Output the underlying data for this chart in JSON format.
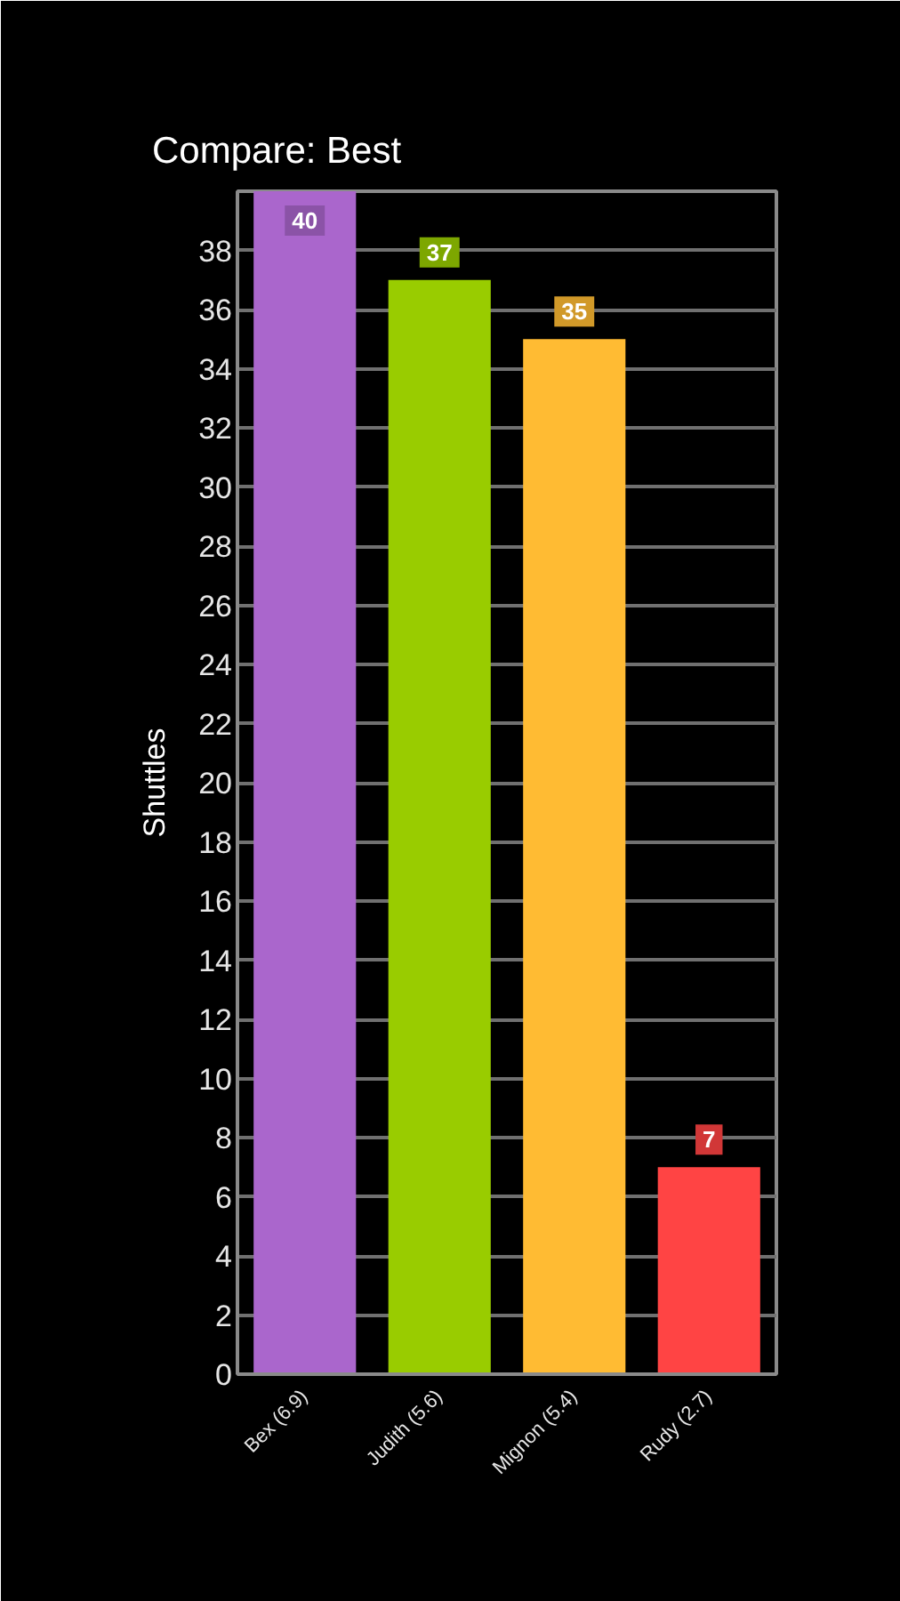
{
  "chart_data": {
    "type": "bar",
    "title": "Compare: Best",
    "ylabel": "Shuttles",
    "categories": [
      "Bex (6.9)",
      "Judith (5.6)",
      "Mignon (5.4)",
      "Rudy (2.7)"
    ],
    "values": [
      40,
      37,
      35,
      7
    ],
    "colors": [
      "#aa66cc",
      "#99cc00",
      "#ffbb33",
      "#ff4444"
    ],
    "ylim": [
      0,
      40
    ],
    "yticks": [
      0,
      2,
      4,
      6,
      8,
      10,
      12,
      14,
      16,
      18,
      20,
      22,
      24,
      26,
      28,
      30,
      32,
      34,
      36,
      38,
      {
        "value": 40,
        "label": null
      }
    ],
    "grid": "y",
    "data_labels": true
  }
}
